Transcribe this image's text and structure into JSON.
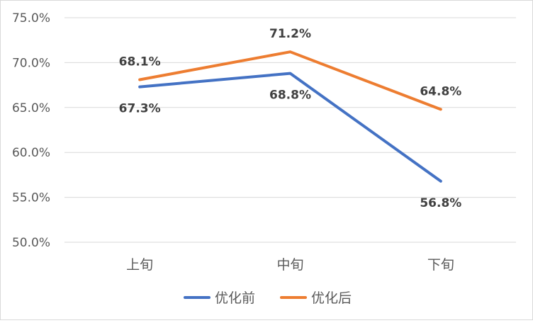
{
  "chart_data": {
    "type": "line",
    "categories": [
      "上旬",
      "中旬",
      "下旬"
    ],
    "series": [
      {
        "name": "优化前",
        "color": "#4472C4",
        "values": [
          67.3,
          68.8,
          56.8
        ],
        "labels": [
          "67.3%",
          "68.8%",
          "56.8%"
        ]
      },
      {
        "name": "优化后",
        "color": "#ED7D31",
        "values": [
          68.1,
          71.2,
          64.8
        ],
        "labels": [
          "68.1%",
          "71.2%",
          "64.8%"
        ]
      }
    ],
    "ylim": [
      50,
      75
    ],
    "yticks": [
      50,
      55,
      60,
      65,
      70,
      75
    ],
    "ytick_labels": [
      "50.0%",
      "55.0%",
      "60.0%",
      "65.0%",
      "70.0%",
      "75.0%"
    ],
    "grid": true,
    "gridline_color": "#d9d9d9",
    "legend": "bottom"
  }
}
